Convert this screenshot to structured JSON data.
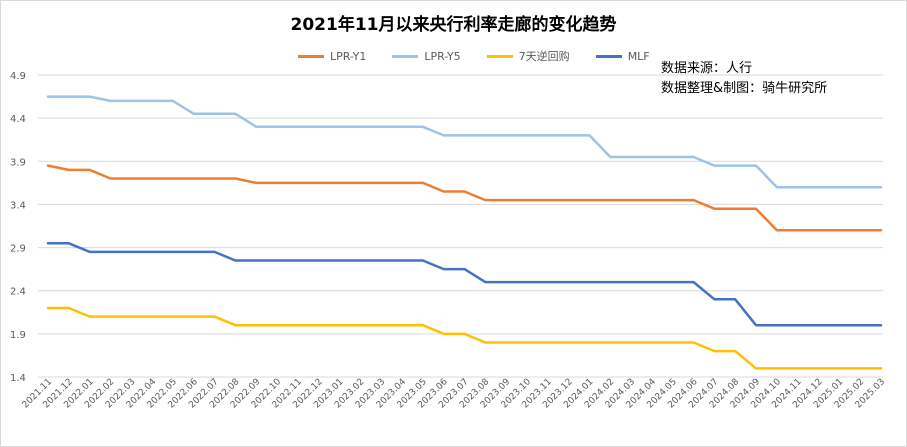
{
  "chart_data": {
    "type": "line",
    "title": "2021年11月以来央行利率走廊的变化趋势",
    "xlabel": "",
    "ylabel": "",
    "ylim": [
      1.4,
      4.9
    ],
    "yticks": [
      "1.4",
      "1.9",
      "2.4",
      "2.9",
      "3.4",
      "3.9",
      "4.4",
      "4.9"
    ],
    "grid": "horizontal",
    "legend": "top",
    "categories": [
      "2021.11",
      "2021.12",
      "2022.01",
      "2022.02",
      "2022.03",
      "2022.04",
      "2022.05",
      "2022.06",
      "2022.07",
      "2022.08",
      "2022.09",
      "2022.10",
      "2022.11",
      "2022.12",
      "2023.01",
      "2023.02",
      "2023.03",
      "2023.04",
      "2023.05",
      "2023.06",
      "2023.07",
      "2023.08",
      "2023.09",
      "2023.10",
      "2023.11",
      "2023.12",
      "2024.01",
      "2024.02",
      "2024.03",
      "2024.04",
      "2024.05",
      "2024.06",
      "2024.07",
      "2024.08",
      "2024.09",
      "2024.10",
      "2024.11",
      "2024.12",
      "2025.01",
      "2025.02",
      "2025.03"
    ],
    "series": [
      {
        "name": "LPR-Y1",
        "color": "#ed7d31",
        "values": [
          3.85,
          3.8,
          3.8,
          3.7,
          3.7,
          3.7,
          3.7,
          3.7,
          3.7,
          3.7,
          3.65,
          3.65,
          3.65,
          3.65,
          3.65,
          3.65,
          3.65,
          3.65,
          3.65,
          3.55,
          3.55,
          3.45,
          3.45,
          3.45,
          3.45,
          3.45,
          3.45,
          3.45,
          3.45,
          3.45,
          3.45,
          3.45,
          3.35,
          3.35,
          3.35,
          3.1,
          3.1,
          3.1,
          3.1,
          3.1,
          3.1
        ]
      },
      {
        "name": "LPR-Y5",
        "color": "#9dc3e6",
        "values": [
          4.65,
          4.65,
          4.65,
          4.6,
          4.6,
          4.6,
          4.6,
          4.45,
          4.45,
          4.45,
          4.3,
          4.3,
          4.3,
          4.3,
          4.3,
          4.3,
          4.3,
          4.3,
          4.3,
          4.2,
          4.2,
          4.2,
          4.2,
          4.2,
          4.2,
          4.2,
          4.2,
          3.95,
          3.95,
          3.95,
          3.95,
          3.95,
          3.85,
          3.85,
          3.85,
          3.6,
          3.6,
          3.6,
          3.6,
          3.6,
          3.6
        ]
      },
      {
        "name": "7天逆回购",
        "color": "#ffc000",
        "values": [
          2.2,
          2.2,
          2.1,
          2.1,
          2.1,
          2.1,
          2.1,
          2.1,
          2.1,
          2.0,
          2.0,
          2.0,
          2.0,
          2.0,
          2.0,
          2.0,
          2.0,
          2.0,
          2.0,
          1.9,
          1.9,
          1.8,
          1.8,
          1.8,
          1.8,
          1.8,
          1.8,
          1.8,
          1.8,
          1.8,
          1.8,
          1.8,
          1.7,
          1.7,
          1.5,
          1.5,
          1.5,
          1.5,
          1.5,
          1.5,
          1.5
        ]
      },
      {
        "name": "MLF",
        "color": "#4472c4",
        "values": [
          2.95,
          2.95,
          2.85,
          2.85,
          2.85,
          2.85,
          2.85,
          2.85,
          2.85,
          2.75,
          2.75,
          2.75,
          2.75,
          2.75,
          2.75,
          2.75,
          2.75,
          2.75,
          2.75,
          2.65,
          2.65,
          2.5,
          2.5,
          2.5,
          2.5,
          2.5,
          2.5,
          2.5,
          2.5,
          2.5,
          2.5,
          2.5,
          2.3,
          2.3,
          2.0,
          2.0,
          2.0,
          2.0,
          2.0,
          2.0,
          2.0
        ]
      }
    ]
  },
  "source": {
    "line1": "数据来源：人行",
    "line2": "数据整理&制图：骑牛研究所"
  }
}
